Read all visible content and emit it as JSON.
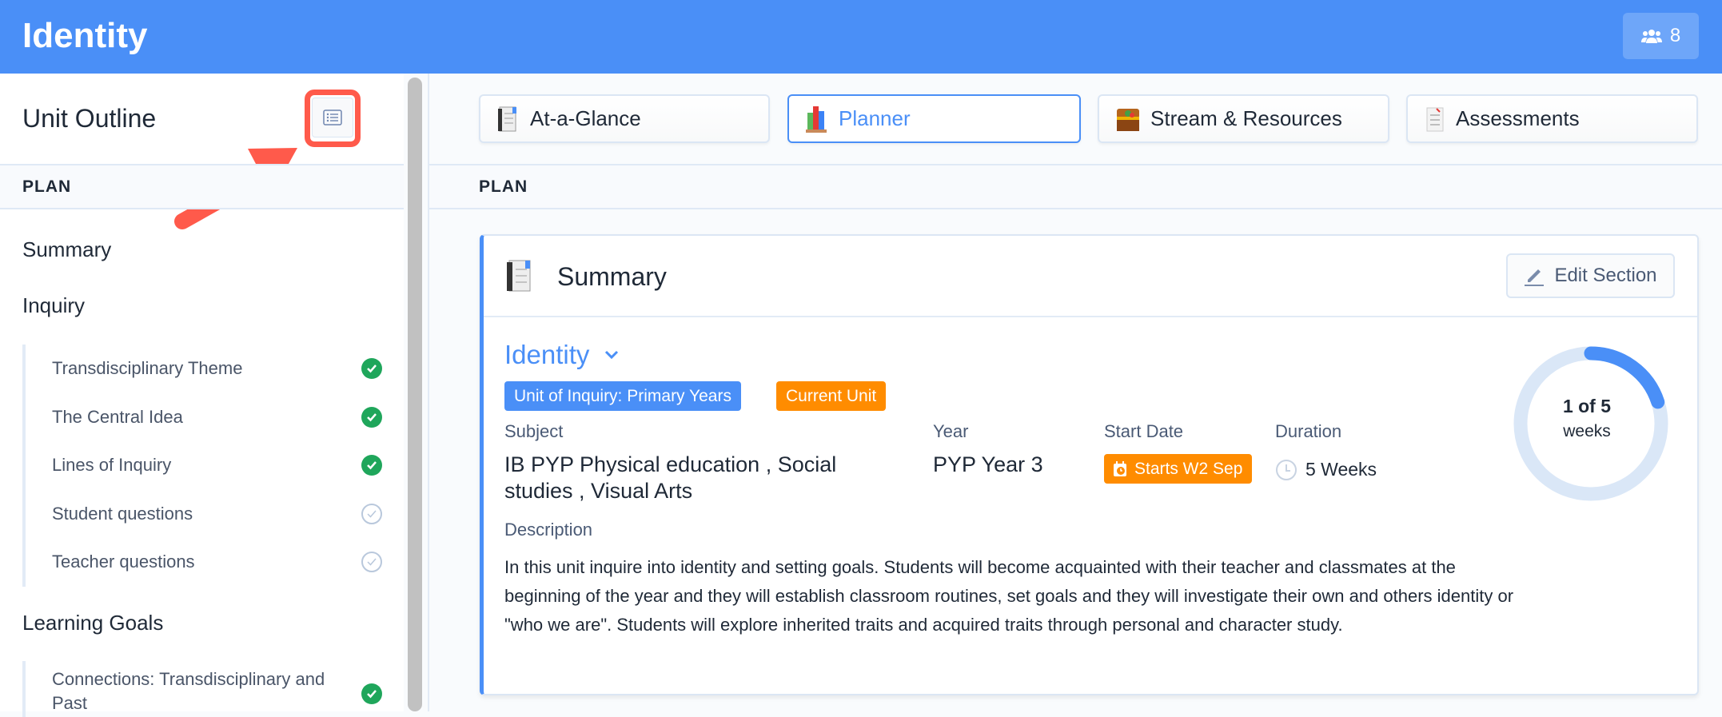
{
  "header": {
    "title": "Identity",
    "members_count": "8",
    "accent": "#4a8ff7"
  },
  "sidebar": {
    "title": "Unit Outline",
    "section": "PLAN",
    "summary": "Summary",
    "inquiry": {
      "label": "Inquiry",
      "items": [
        {
          "label": "Transdisciplinary Theme",
          "done": true
        },
        {
          "label": "The Central Idea",
          "done": true
        },
        {
          "label": "Lines of Inquiry",
          "done": true
        },
        {
          "label": "Student questions",
          "done": false
        },
        {
          "label": "Teacher questions",
          "done": false
        }
      ]
    },
    "learning_goals": {
      "label": "Learning Goals",
      "items": [
        {
          "label": "Connections: Transdisciplinary and Past",
          "done": true
        }
      ]
    }
  },
  "tabs": [
    {
      "label": "At-a-Glance",
      "icon": "notebook-icon",
      "active": false
    },
    {
      "label": "Planner",
      "icon": "books-icon",
      "active": true
    },
    {
      "label": "Stream & Resources",
      "icon": "treasure-chest-icon",
      "active": false
    },
    {
      "label": "Assessments",
      "icon": "checklist-icon",
      "active": false
    }
  ],
  "main": {
    "section": "PLAN",
    "card": {
      "title": "Summary",
      "edit_label": "Edit Section",
      "unit_name": "Identity",
      "badges": [
        "Unit of Inquiry: Primary Years",
        "Current Unit"
      ],
      "subject_label": "Subject",
      "subject": "IB PYP Physical education , Social studies , Visual Arts",
      "year_label": "Year",
      "year": "PYP Year 3",
      "start_label": "Start Date",
      "start": "Starts W2 Sep",
      "duration_label": "Duration",
      "duration": "5 Weeks",
      "description_label": "Description",
      "description": "In this unit inquire into identity and setting goals. Students will become acquainted with their teacher and classmates at the beginning of the year and they will establish classroom routines, set goals and they will investigate their own and others identity or \"who we are\". Students will explore inherited traits and acquired traits through personal and character study.",
      "progress": {
        "current": 1,
        "total": 5,
        "text": "1 of 5",
        "unit": "weeks"
      }
    }
  }
}
